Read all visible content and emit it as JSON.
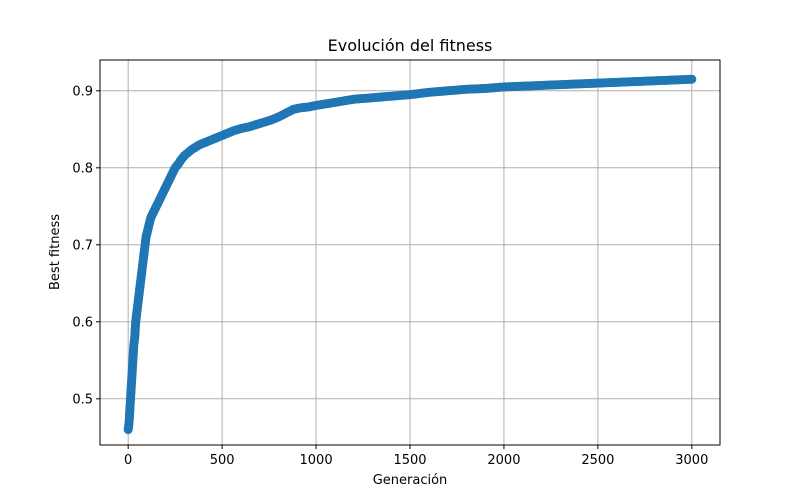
{
  "chart_data": {
    "type": "scatter",
    "title": "Evolución del fitness",
    "xlabel": "Generación",
    "ylabel": "Best fitness",
    "xlim": [
      -150,
      3150
    ],
    "ylim": [
      0.44,
      0.94
    ],
    "xticks": [
      0,
      500,
      1000,
      1500,
      2000,
      2500,
      3000
    ],
    "yticks": [
      0.5,
      0.6,
      0.7,
      0.8,
      0.9
    ],
    "xtick_labels": [
      "0",
      "500",
      "1000",
      "1500",
      "2000",
      "2500",
      "3000"
    ],
    "ytick_labels": [
      "0.5",
      "0.6",
      "0.7",
      "0.8",
      "0.9"
    ],
    "grid": true,
    "legend": "none",
    "marker": "circle",
    "color": "#1f77b4",
    "series": [
      {
        "x": [
          0,
          5,
          10,
          15,
          20,
          25,
          30,
          35,
          40,
          45,
          50,
          55,
          60,
          65,
          70,
          75,
          80,
          85,
          90,
          95,
          100,
          110,
          120,
          130,
          140,
          150,
          160,
          170,
          180,
          190,
          200,
          210,
          220,
          230,
          240,
          250,
          260,
          270,
          280,
          290,
          300,
          310,
          320,
          330,
          340,
          360,
          380,
          400,
          420,
          440,
          460,
          480,
          500,
          530,
          560,
          600,
          640,
          680,
          720,
          760,
          800,
          840,
          880,
          920,
          960,
          1000,
          1050,
          1100,
          1150,
          1200,
          1300,
          1400,
          1500,
          1600,
          1700,
          1800,
          1900,
          2000,
          2100,
          2200,
          2300,
          2400,
          2500,
          2600,
          2700,
          2800,
          2900,
          3000
        ],
        "y": [
          0.46,
          0.47,
          0.49,
          0.51,
          0.53,
          0.55,
          0.57,
          0.58,
          0.6,
          0.61,
          0.62,
          0.63,
          0.64,
          0.65,
          0.66,
          0.67,
          0.68,
          0.69,
          0.7,
          0.71,
          0.715,
          0.725,
          0.735,
          0.74,
          0.745,
          0.75,
          0.755,
          0.76,
          0.765,
          0.77,
          0.775,
          0.78,
          0.785,
          0.79,
          0.795,
          0.8,
          0.803,
          0.806,
          0.81,
          0.813,
          0.816,
          0.818,
          0.82,
          0.822,
          0.824,
          0.827,
          0.83,
          0.832,
          0.834,
          0.836,
          0.838,
          0.84,
          0.842,
          0.845,
          0.848,
          0.851,
          0.853,
          0.856,
          0.859,
          0.862,
          0.866,
          0.871,
          0.876,
          0.878,
          0.879,
          0.881,
          0.883,
          0.885,
          0.887,
          0.889,
          0.891,
          0.893,
          0.895,
          0.898,
          0.9,
          0.902,
          0.903,
          0.905,
          0.906,
          0.907,
          0.908,
          0.909,
          0.91,
          0.911,
          0.912,
          0.913,
          0.914,
          0.915
        ]
      }
    ]
  }
}
